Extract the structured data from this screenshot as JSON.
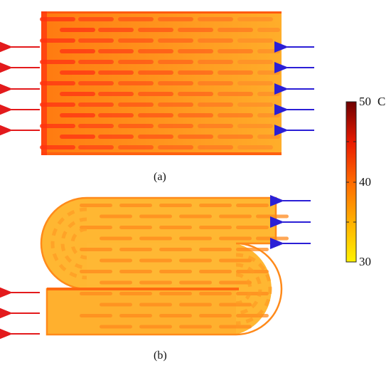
{
  "panels": {
    "a": {
      "caption": "(a)"
    },
    "b": {
      "caption": "(b)"
    }
  },
  "colorbar": {
    "max_label": "50",
    "unit": "C",
    "mid_label": "40",
    "min_label": "30",
    "colors": [
      "#fff200",
      "#ffb000",
      "#ff7000",
      "#ff2a00",
      "#d40000",
      "#7a0000"
    ]
  },
  "arrows": {
    "outlet_color": "#e31a1c",
    "inlet_color": "#2b1fd6"
  }
}
